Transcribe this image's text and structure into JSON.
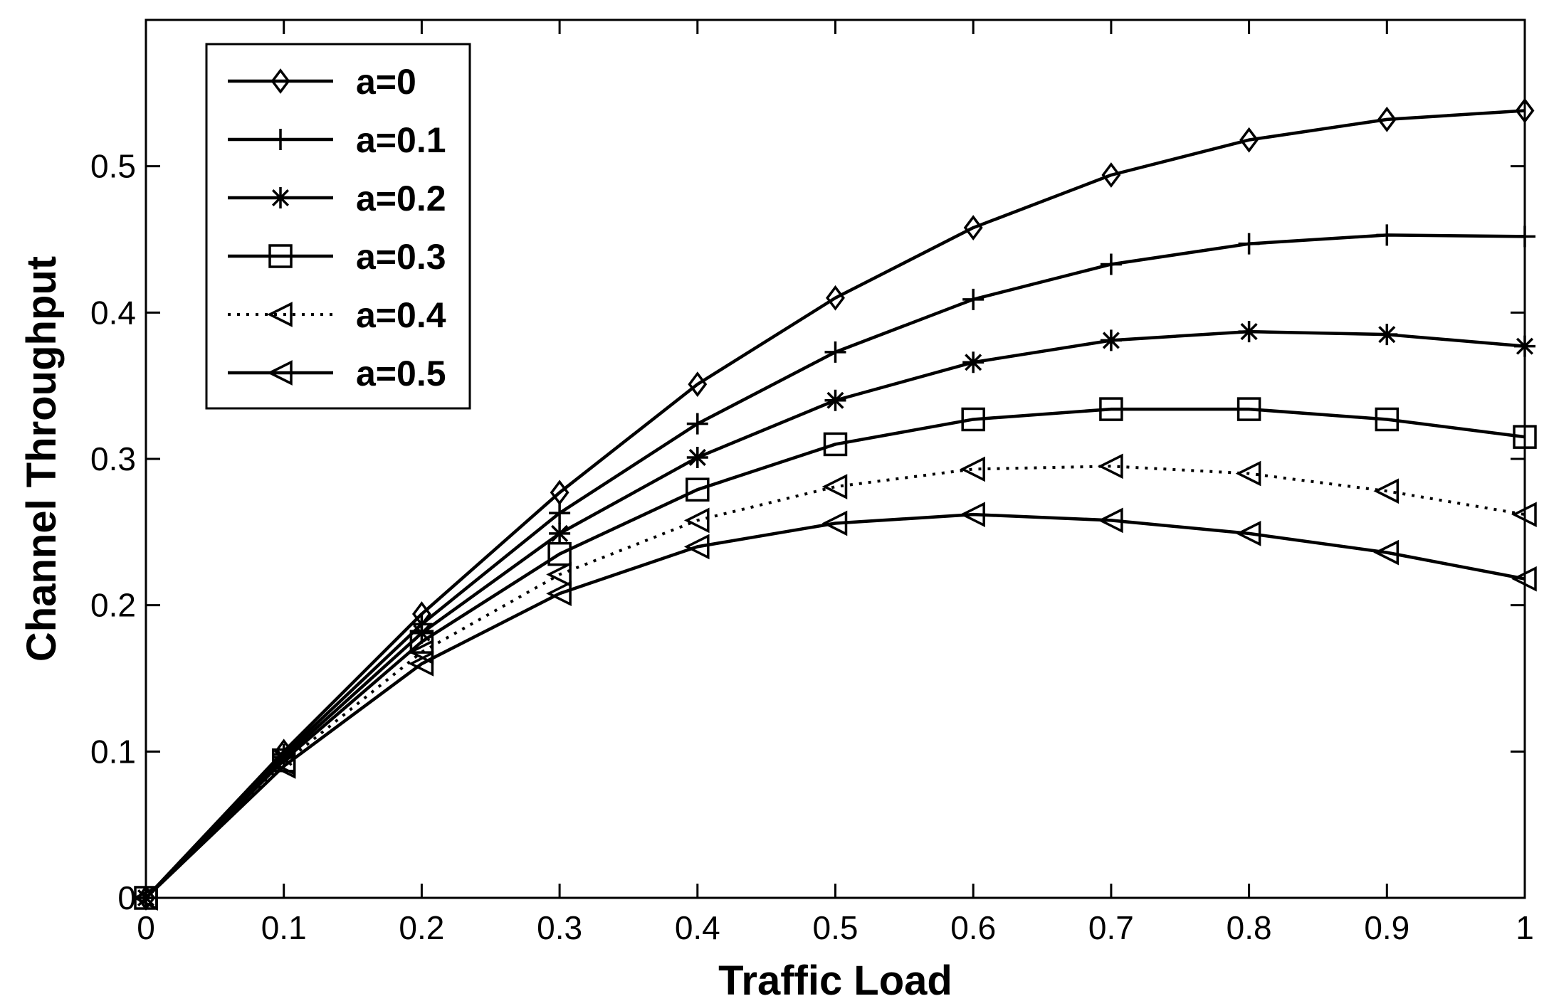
{
  "chart_data": {
    "type": "line",
    "title": "",
    "xlabel": "Traffic Load",
    "ylabel": "Channel Throughput",
    "xlim": [
      0,
      1
    ],
    "ylim": [
      0,
      0.6
    ],
    "xticks": [
      0,
      0.1,
      0.2,
      0.3,
      0.4,
      0.5,
      0.6,
      0.7,
      0.8,
      0.9,
      1
    ],
    "xtick_labels": [
      "0",
      "0.1",
      "0.2",
      "0.3",
      "0.4",
      "0.5",
      "0.6",
      "0.7",
      "0.8",
      "0.9",
      "1"
    ],
    "yticks": [
      0,
      0.1,
      0.2,
      0.3,
      0.4,
      0.5
    ],
    "ytick_labels": [
      "0",
      "0.1",
      "0.2",
      "0.3",
      "0.4",
      "0.5"
    ],
    "grid": false,
    "legend_position": "top-left",
    "x": [
      0,
      0.1,
      0.2,
      0.3,
      0.4,
      0.5,
      0.6,
      0.7,
      0.8,
      0.9,
      1
    ],
    "series": [
      {
        "name": "a=0",
        "marker": "diamond",
        "linestyle": "solid",
        "values": [
          0,
          0.1,
          0.194,
          0.277,
          0.351,
          0.41,
          0.458,
          0.494,
          0.518,
          0.532,
          0.538
        ]
      },
      {
        "name": "a=0.1",
        "marker": "plus",
        "linestyle": "solid",
        "values": [
          0,
          0.098,
          0.187,
          0.263,
          0.324,
          0.373,
          0.409,
          0.433,
          0.447,
          0.453,
          0.452
        ]
      },
      {
        "name": "a=0.2",
        "marker": "star",
        "linestyle": "solid",
        "values": [
          0,
          0.096,
          0.181,
          0.249,
          0.301,
          0.34,
          0.366,
          0.381,
          0.387,
          0.385,
          0.377
        ]
      },
      {
        "name": "a=0.3",
        "marker": "square",
        "linestyle": "solid",
        "values": [
          0,
          0.094,
          0.175,
          0.235,
          0.279,
          0.31,
          0.327,
          0.334,
          0.334,
          0.327,
          0.315
        ]
      },
      {
        "name": "a=0.4",
        "marker": "triangle-left",
        "linestyle": "dotted",
        "values": [
          0,
          0.092,
          0.168,
          0.221,
          0.258,
          0.281,
          0.293,
          0.295,
          0.29,
          0.278,
          0.262
        ]
      },
      {
        "name": "a=0.5",
        "marker": "triangle-left",
        "linestyle": "solid",
        "values": [
          0,
          0.09,
          0.16,
          0.208,
          0.24,
          0.256,
          0.262,
          0.258,
          0.249,
          0.236,
          0.218
        ]
      }
    ]
  }
}
